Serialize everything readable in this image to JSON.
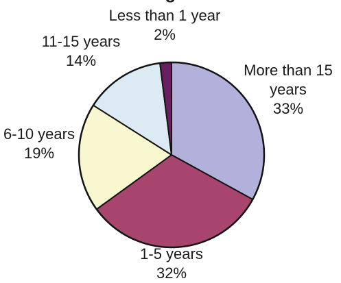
{
  "chart_data": {
    "type": "pie",
    "title_partial": "g",
    "start_angle_deg": 0,
    "direction": "clockwise",
    "slices": [
      {
        "label": "More than 15 years",
        "label_lines": [
          "More than 15",
          "years"
        ],
        "value": 33,
        "value_label": "33%",
        "color": "#b1b1dc"
      },
      {
        "label": "1-5 years",
        "label_lines": [
          "1-5 years"
        ],
        "value": 32,
        "value_label": "32%",
        "color": "#a8456f"
      },
      {
        "label": "6-10 years",
        "label_lines": [
          "6-10 years"
        ],
        "value": 19,
        "value_label": "19%",
        "color": "#f9f7cf"
      },
      {
        "label": "11-15 years",
        "label_lines": [
          "11-15 years"
        ],
        "value": 14,
        "value_label": "14%",
        "color": "#dcebf3"
      },
      {
        "label": "Less than 1 year",
        "label_lines": [
          "Less than 1 year"
        ],
        "value": 2,
        "value_label": "2%",
        "color": "#6a1e62"
      }
    ]
  }
}
